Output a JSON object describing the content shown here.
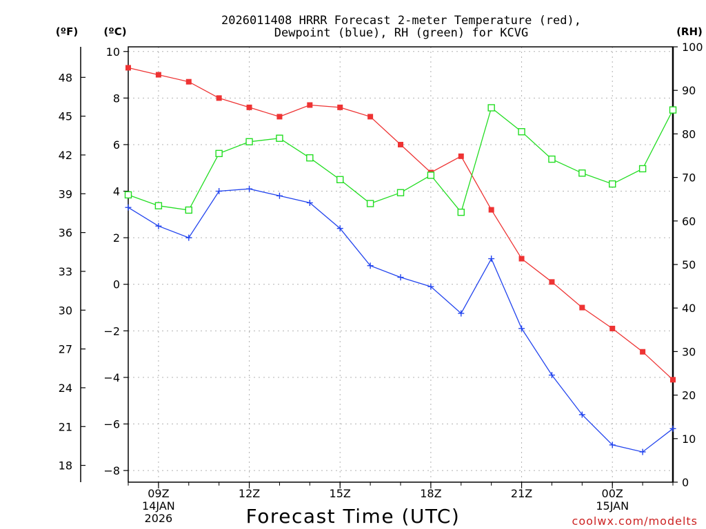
{
  "chart_data": {
    "type": "line",
    "title_line1": "2026011408 HRRR Forecast 2-meter Temperature (red),",
    "title_line2": "Dewpoint (blue), RH (green) for KCVG",
    "xlabel": "Forecast Time (UTC)",
    "left_f_label": "(ºF)",
    "left_c_label": "(ºC)",
    "right_rh_label": "(RH)",
    "credit": "coolwx.com/modelts",
    "ylim_c": [
      -8.5,
      10.2
    ],
    "ylim_rh": [
      0,
      100
    ],
    "x_hours": [
      8,
      9,
      10,
      11,
      12,
      13,
      14,
      15,
      16,
      17,
      18,
      19,
      20,
      21,
      22,
      23,
      24,
      25,
      26
    ],
    "x_ticks": [
      {
        "hour": 9,
        "label": "09Z",
        "sub1": "14JAN",
        "sub2": "2026"
      },
      {
        "hour": 12,
        "label": "12Z",
        "sub1": "",
        "sub2": ""
      },
      {
        "hour": 15,
        "label": "15Z",
        "sub1": "",
        "sub2": ""
      },
      {
        "hour": 18,
        "label": "18Z",
        "sub1": "",
        "sub2": ""
      },
      {
        "hour": 21,
        "label": "21Z",
        "sub1": "",
        "sub2": ""
      },
      {
        "hour": 24,
        "label": "00Z",
        "sub1": "15JAN",
        "sub2": ""
      }
    ],
    "c_ticks": [
      10,
      8,
      6,
      4,
      2,
      0,
      -2,
      -4,
      -6,
      -8
    ],
    "f_ticks": [
      48,
      45,
      42,
      39,
      36,
      33,
      30,
      27,
      24,
      21,
      18
    ],
    "rh_ticks": [
      100,
      90,
      80,
      70,
      60,
      50,
      40,
      30,
      20,
      10,
      0
    ],
    "series": [
      {
        "name": "Temperature",
        "color": "#ee3333",
        "marker": "filled-square",
        "values": [
          9.3,
          9.0,
          8.7,
          8.0,
          7.6,
          7.2,
          7.7,
          7.6,
          7.2,
          6.0,
          4.8,
          5.5,
          3.2,
          1.1,
          0.1,
          -1.0,
          -1.9,
          -2.9,
          -4.1
        ]
      },
      {
        "name": "Dewpoint",
        "color": "#2244ee",
        "marker": "plus",
        "values": [
          3.3,
          2.5,
          2.0,
          4.0,
          4.1,
          3.8,
          3.5,
          2.4,
          0.8,
          0.3,
          -0.1,
          -1.25,
          1.1,
          -1.9,
          -3.9,
          -5.6,
          -6.9,
          -7.2,
          -6.2
        ]
      },
      {
        "name": "RH",
        "color": "#22dd22",
        "marker": "open-square",
        "values": [
          66,
          63.5,
          62.5,
          75.5,
          78.2,
          79,
          74.5,
          69.5,
          64,
          66.5,
          70.5,
          62,
          86,
          80.5,
          74.2,
          71,
          68.5,
          72,
          85.5
        ]
      }
    ]
  }
}
